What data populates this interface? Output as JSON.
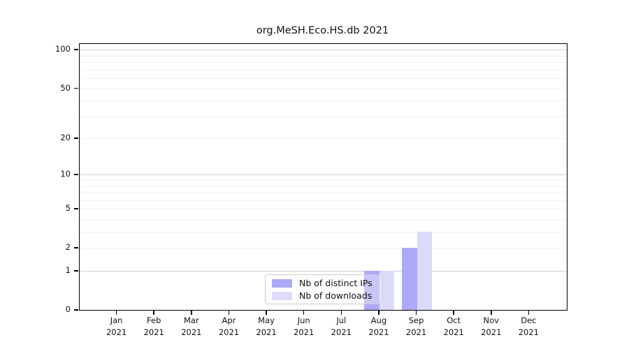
{
  "title": "org.MeSH.Eco.HS.db 2021",
  "chart_data": {
    "type": "bar",
    "title": "org.MeSH.Eco.HS.db 2021",
    "categories": [
      "Jan",
      "Feb",
      "Mar",
      "Apr",
      "May",
      "Jun",
      "Jul",
      "Aug",
      "Sep",
      "Oct",
      "Nov",
      "Dec"
    ],
    "year_label": "2021",
    "series": [
      {
        "name": "Nb of distinct IPs",
        "color": "#acaaf8",
        "values": [
          0,
          0,
          0,
          0,
          0,
          0,
          0,
          1,
          2,
          0,
          0,
          0
        ]
      },
      {
        "name": "Nb of downloads",
        "color": "#dcdbfa",
        "values": [
          0,
          0,
          0,
          0,
          0,
          0,
          0,
          1,
          3,
          0,
          0,
          0
        ]
      }
    ],
    "xlabel": "",
    "ylabel": "",
    "yticks": [
      0,
      1,
      2,
      5,
      10,
      20,
      50,
      100
    ],
    "ylim": [
      0,
      111
    ],
    "scale": "log10(1+v)",
    "grid": {
      "on": true,
      "major_values": [
        1,
        10,
        100
      ],
      "minor_values": [
        2,
        3,
        4,
        5,
        6,
        7,
        8,
        9,
        20,
        30,
        40,
        50,
        60,
        70,
        80,
        90
      ],
      "major_color": "#cfcfcf",
      "minor_color": "#f1f1f1"
    },
    "legend_position": "bottom-center"
  }
}
